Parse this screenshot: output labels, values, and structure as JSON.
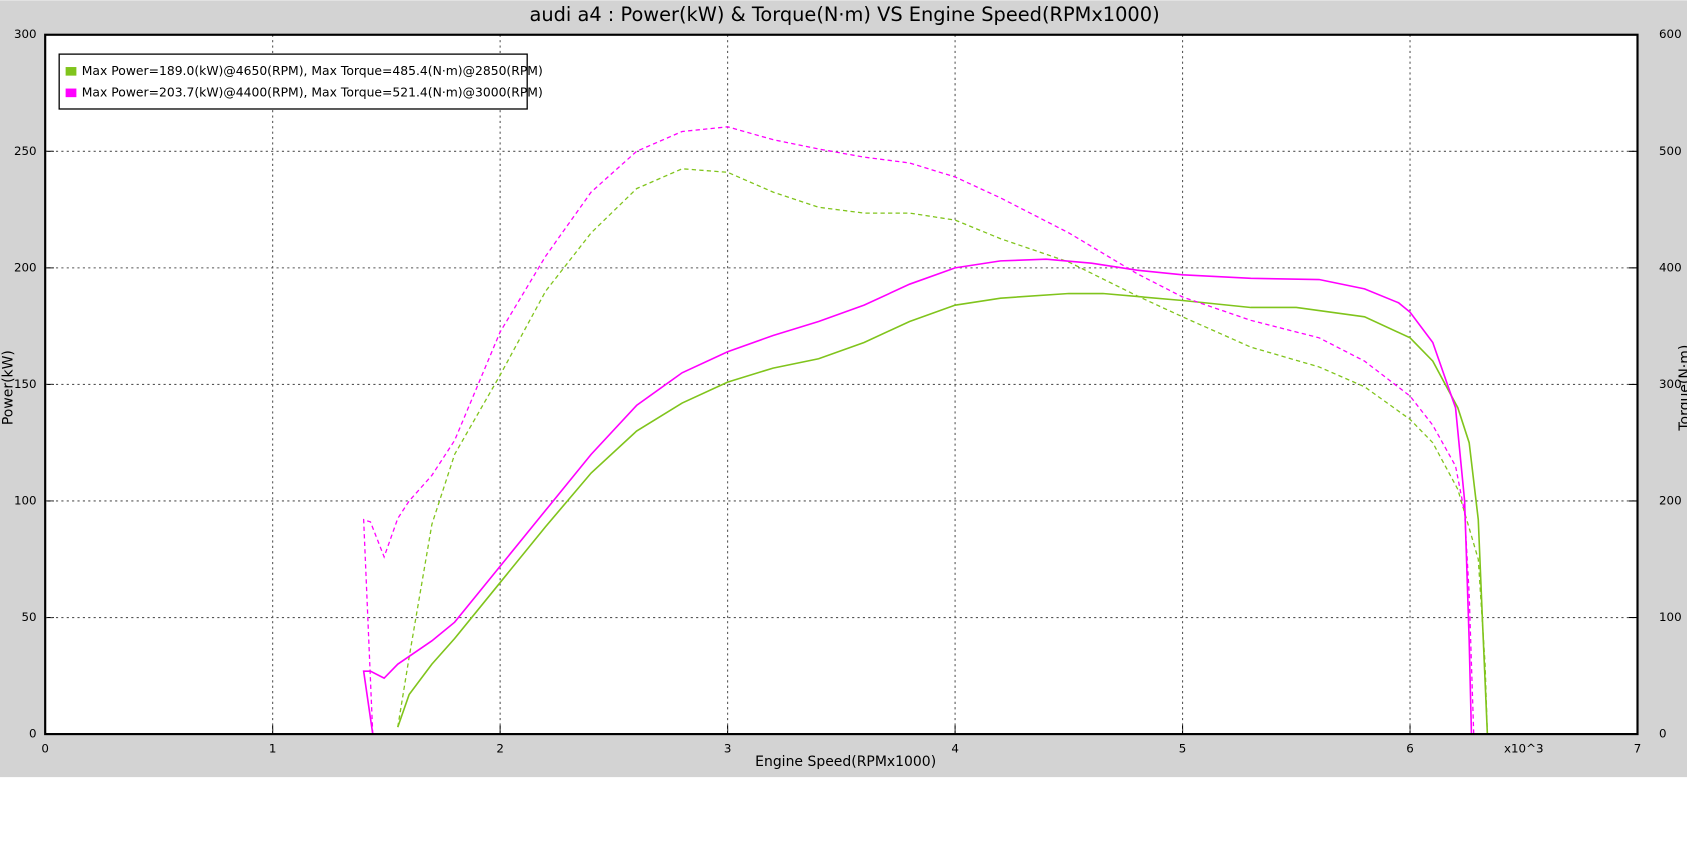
{
  "chart_data": {
    "type": "line",
    "title": "audi a4 : Power(kW) & Torque(N·m) VS Engine Speed(RPMx1000)",
    "xlabel": "Engine Speed(RPMx1000)",
    "ylabel": "Power(kW)",
    "y2label": "Torque(N·m)",
    "annotation": "x10^3",
    "xlim": [
      0,
      7
    ],
    "xticks": [
      0,
      1,
      2,
      3,
      4,
      5,
      6,
      7
    ],
    "ylim": [
      0,
      300
    ],
    "yticks": [
      0,
      50,
      100,
      150,
      200,
      250,
      300
    ],
    "y2lim": [
      0,
      600
    ],
    "y2ticks": [
      0,
      100,
      200,
      300,
      400,
      500,
      600
    ],
    "grid": true,
    "legend": "upper left",
    "series": [
      {
        "name": "Max Power=189.0(kW)@4650(RPM), Max Torque=485.4(N·m)@2850(RPM)",
        "color": "#80c41c",
        "linestyle": "solid",
        "x": [
          1.55,
          1.6,
          1.7,
          1.8,
          2.0,
          2.2,
          2.4,
          2.6,
          2.8,
          3.0,
          3.2,
          3.4,
          3.6,
          3.8,
          4.0,
          4.2,
          4.5,
          4.65,
          5.0,
          5.3,
          5.5,
          5.8,
          6.0,
          6.1,
          6.21,
          6.26,
          6.3,
          6.32,
          6.34
        ],
        "values": [
          3,
          17,
          30,
          41,
          65,
          89,
          112,
          130,
          142,
          151,
          157,
          161,
          168,
          177,
          184,
          187,
          189,
          189,
          186,
          183,
          183,
          179,
          170,
          160,
          140,
          125,
          92,
          45,
          0
        ]
      },
      {
        "color": "#80c41c",
        "linestyle": "dashed",
        "axis": "y2",
        "x": [
          1.55,
          1.6,
          1.7,
          1.8,
          2.0,
          2.2,
          2.4,
          2.6,
          2.8,
          3.0,
          3.2,
          3.4,
          3.6,
          3.8,
          4.0,
          4.2,
          4.5,
          4.8,
          5.0,
          5.3,
          5.6,
          5.8,
          6.0,
          6.1,
          6.21,
          6.3,
          6.33,
          6.34
        ],
        "values": [
          6,
          66,
          180,
          240,
          308,
          380,
          430,
          468,
          485,
          482,
          465,
          452,
          447,
          447,
          441,
          425,
          405,
          376,
          358,
          332,
          315,
          298,
          270,
          250,
          210,
          150,
          60,
          0
        ]
      },
      {
        "name": "Max Power=203.7(kW)@4400(RPM), Max Torque=521.4(N·m)@3000(RPM)",
        "color": "#ff00ff",
        "linestyle": "solid",
        "x": [
          1.44,
          1.4,
          1.43,
          1.49,
          1.55,
          1.7,
          1.8,
          2.0,
          2.2,
          2.4,
          2.6,
          2.8,
          3.0,
          3.2,
          3.4,
          3.6,
          3.8,
          4.0,
          4.2,
          4.4,
          4.6,
          4.8,
          5.0,
          5.3,
          5.6,
          5.8,
          5.95,
          6.0,
          6.1,
          6.2,
          6.24,
          6.26,
          6.27
        ],
        "values": [
          0,
          27,
          27,
          24,
          30,
          40,
          48,
          72,
          96,
          120,
          141,
          155,
          164,
          171,
          177,
          184,
          193,
          200,
          203,
          203.7,
          202,
          199,
          197,
          195.5,
          195,
          191,
          185,
          181,
          168,
          140,
          100,
          40,
          0
        ]
      },
      {
        "color": "#ff00ff",
        "linestyle": "dashed",
        "axis": "y2",
        "x": [
          1.44,
          1.4,
          1.43,
          1.49,
          1.55,
          1.6,
          1.7,
          1.8,
          2.0,
          2.2,
          2.4,
          2.6,
          2.8,
          3.0,
          3.2,
          3.4,
          3.6,
          3.8,
          4.0,
          4.2,
          4.5,
          4.8,
          5.0,
          5.3,
          5.6,
          5.8,
          6.0,
          6.1,
          6.2,
          6.24,
          6.26,
          6.28
        ],
        "values": [
          0,
          184,
          182,
          152,
          185,
          200,
          222,
          252,
          345,
          410,
          465,
          500,
          517,
          521,
          510,
          502,
          495,
          490,
          478,
          460,
          430,
          395,
          375,
          355,
          340,
          320,
          290,
          265,
          230,
          190,
          120,
          0
        ]
      }
    ]
  }
}
